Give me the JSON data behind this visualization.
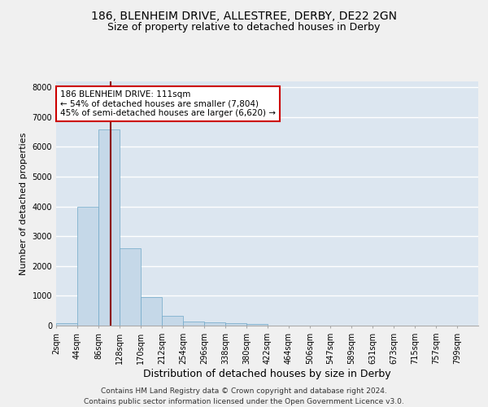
{
  "title1": "186, BLENHEIM DRIVE, ALLESTREE, DERBY, DE22 2GN",
  "title2": "Size of property relative to detached houses in Derby",
  "xlabel": "Distribution of detached houses by size in Derby",
  "ylabel": "Number of detached properties",
  "annotation_line1": "186 BLENHEIM DRIVE: 111sqm",
  "annotation_line2": "← 54% of detached houses are smaller (7,804)",
  "annotation_line3": "45% of semi-detached houses are larger (6,620) →",
  "footer1": "Contains HM Land Registry data © Crown copyright and database right 2024.",
  "footer2": "Contains public sector information licensed under the Open Government Licence v3.0.",
  "property_size_sqm": 111,
  "bin_edges": [
    2,
    44,
    86,
    128,
    170,
    212,
    254,
    296,
    338,
    380,
    422,
    464,
    506,
    547,
    589,
    631,
    673,
    715,
    757,
    799,
    841
  ],
  "bar_heights": [
    80,
    4000,
    6600,
    2600,
    950,
    320,
    130,
    120,
    70,
    60,
    0,
    0,
    0,
    0,
    0,
    0,
    0,
    0,
    0,
    0
  ],
  "bar_color": "#c5d8e8",
  "bar_edge_color": "#6fa8c8",
  "vline_color": "#8b0000",
  "vline_x": 111,
  "background_color": "#dce6f0",
  "plot_background": "#dce6f0",
  "ylim": [
    0,
    8200
  ],
  "yticks": [
    0,
    1000,
    2000,
    3000,
    4000,
    5000,
    6000,
    7000,
    8000
  ],
  "grid_color": "#ffffff",
  "title1_fontsize": 10,
  "title2_fontsize": 9,
  "xlabel_fontsize": 9,
  "ylabel_fontsize": 8,
  "tick_fontsize": 7,
  "annotation_fontsize": 7.5,
  "footer_fontsize": 6.5
}
